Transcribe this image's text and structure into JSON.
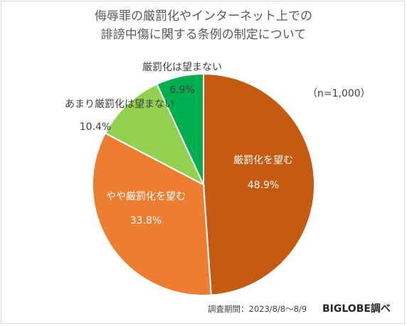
{
  "title": {
    "line1": "侮辱罪の厳罰化やインターネット上での",
    "line2": "誹謗中傷に関する条例の制定について"
  },
  "sample_note": "（n=1,000）",
  "footer": {
    "period": "調査期間：2023/8/8～8/9",
    "source": "BIGLOBE調べ"
  },
  "chart_data": {
    "type": "pie",
    "title": "侮辱罪の厳罰化やインターネット上での誹謗中傷に関する条例の制定について",
    "slices": [
      {
        "label": "厳罰化を望む",
        "value": 48.9,
        "value_label": "48.9%",
        "color": "#c55a11"
      },
      {
        "label": "やや厳罰化を望む",
        "value": 33.8,
        "value_label": "33.8%",
        "color": "#ed7d31"
      },
      {
        "label": "あまり厳罰化は望まない",
        "value": 10.4,
        "value_label": "10.4%",
        "color": "#92d050"
      },
      {
        "label": "厳罰化は望まない",
        "value": 6.9,
        "value_label": "6.9%",
        "color": "#00b050"
      }
    ],
    "start": "12 o'clock",
    "direction": "clockwise"
  }
}
